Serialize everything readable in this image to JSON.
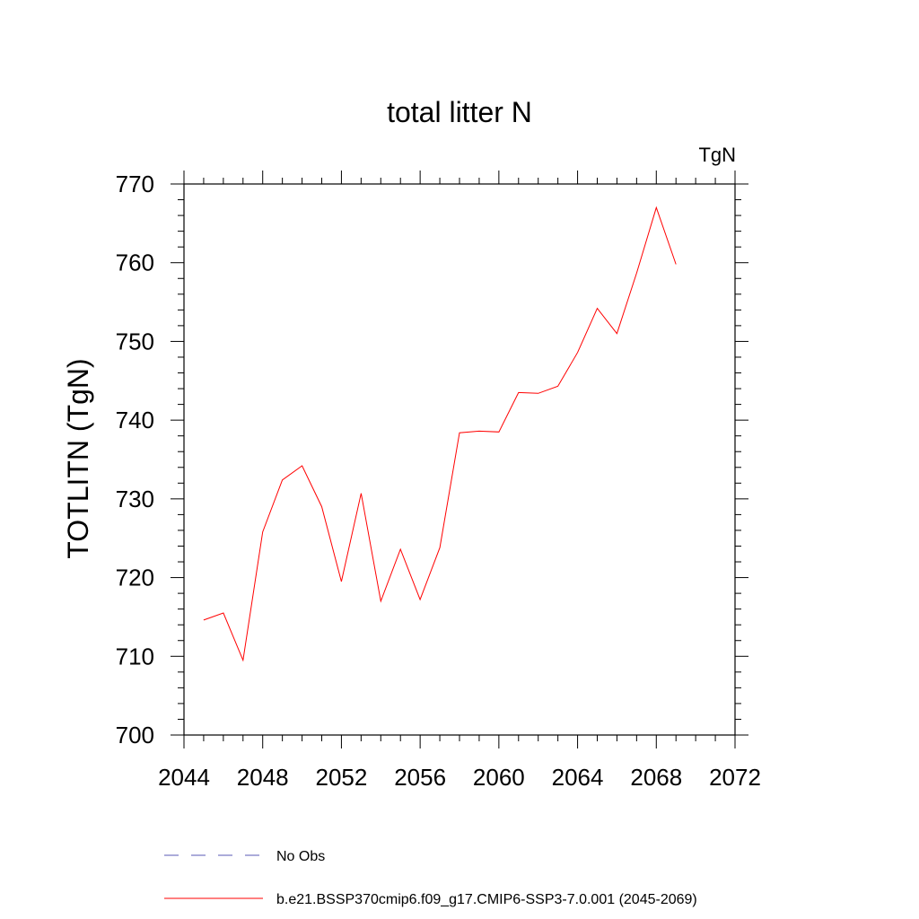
{
  "chart_data": {
    "type": "line",
    "title": "total litter N",
    "units_label": "TgN",
    "ylabel": "TOTLITN  (TgN)",
    "xlabel": "",
    "xlim": [
      2044,
      2072
    ],
    "ylim": [
      700,
      770
    ],
    "x_ticks": [
      2044,
      2048,
      2052,
      2056,
      2060,
      2064,
      2068,
      2072
    ],
    "y_ticks": [
      700,
      710,
      720,
      730,
      740,
      750,
      760,
      770
    ],
    "x_minor_step": 1,
    "y_minor_step": 2,
    "grid": false,
    "legend_position": "bottom",
    "series": [
      {
        "name": "No Obs",
        "color": "#5a5ab4",
        "dash": "dashed",
        "x": [],
        "y": []
      },
      {
        "name": "b.e21.BSSP370cmip6.f09_g17.CMIP6-SSP3-7.0.001 (2045-2069)",
        "color": "#ff0000",
        "dash": "solid",
        "x": [
          2045,
          2046,
          2047,
          2048,
          2049,
          2050,
          2051,
          2052,
          2053,
          2054,
          2055,
          2056,
          2057,
          2058,
          2059,
          2060,
          2061,
          2062,
          2063,
          2064,
          2065,
          2066,
          2067,
          2068,
          2069
        ],
        "y": [
          714.6,
          715.5,
          709.5,
          725.8,
          732.4,
          734.2,
          729.0,
          719.5,
          730.7,
          717.0,
          723.6,
          717.2,
          723.8,
          738.4,
          738.6,
          738.5,
          743.5,
          743.4,
          744.3,
          748.6,
          754.2,
          751.0,
          758.7,
          767.0,
          759.8
        ]
      }
    ]
  }
}
